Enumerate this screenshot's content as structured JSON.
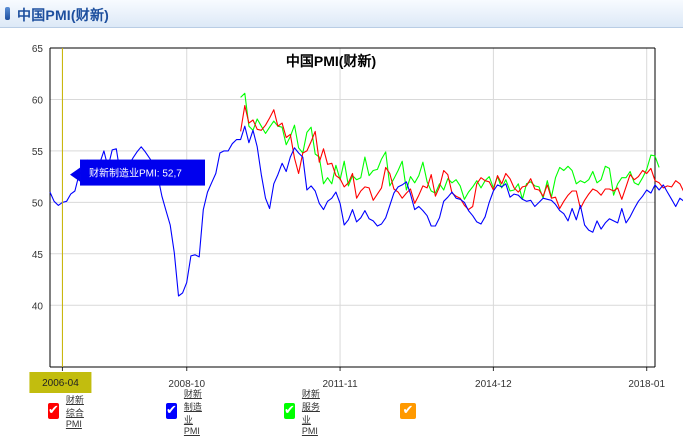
{
  "panel": {
    "title": "中国PMI(财新)"
  },
  "chart_data": {
    "type": "line",
    "title": "中国PMI(财新)",
    "ylim": [
      34,
      65
    ],
    "yticks": [
      40,
      45,
      50,
      55,
      60,
      65
    ],
    "xlim": [
      "2006-01",
      "2018-03"
    ],
    "xticks": [
      "2006-04",
      "2008-10",
      "2011-11",
      "2014-12",
      "2018-01"
    ],
    "x_tick_labels": [
      "2006-04",
      "2008-10",
      "2011-11",
      "2014-12",
      "2018-01"
    ],
    "x_start_label_partial": "200",
    "grid": true,
    "series": [
      {
        "name": "财新综合PMI",
        "color": "#ff0000",
        "start": "2009-11",
        "values": [
          56.9,
          59.4,
          57.7,
          58.0,
          57.1,
          57.0,
          57.5,
          58.2,
          59.0,
          57.4,
          57.7,
          56.3,
          56.6,
          54.3,
          52.8,
          54.8,
          55.0,
          55.9,
          56.9,
          53.9,
          55.2,
          53.7,
          53.8,
          52.6,
          52.3,
          51.5,
          51.9,
          52.8,
          50.4,
          51.1,
          51.5,
          51.4,
          50.2,
          50.8,
          51.4,
          53.4,
          52.8,
          51.3,
          51.0,
          50.4,
          50.9,
          51.3,
          49.9,
          50.7,
          51.6,
          51.4,
          52.7,
          50.6,
          51.5,
          53.1,
          52.7,
          50.9,
          50.6,
          50.4,
          49.7,
          49.3,
          49.6,
          51.8,
          52.4,
          52.1,
          52.0,
          51.2,
          52.6,
          51.8,
          52.8,
          52.3,
          51.4,
          51.0,
          51.5,
          51.6,
          52.3,
          51.3,
          51.2,
          50.6,
          51.7,
          50.4,
          50.5,
          49.4,
          50.1,
          50.7,
          51.1,
          51.1,
          49.4,
          50.2,
          50.8,
          51.3,
          51.1,
          50.7,
          51.3,
          51.3,
          51.1,
          51.4,
          50.3,
          51.5,
          52.7,
          52.2,
          52.5,
          53.1,
          52.8,
          53.3,
          52.1,
          51.9,
          51.4,
          51.6,
          51.5,
          52.1,
          51.8,
          51.0,
          51.2,
          51.6,
          51.3,
          51.5,
          51.9,
          51.7,
          52.3,
          53.0,
          53.6,
          53.3,
          52.2
        ],
        "style": "line"
      },
      {
        "name": "财新制造业PMI",
        "color": "#0000ff",
        "start": "2006-01",
        "values": [
          51.0,
          50.1,
          49.7,
          50.0,
          50.1,
          50.8,
          51.1,
          52.7,
          53.2,
          54.1,
          52.3,
          53.0,
          53.8,
          55.0,
          53.4,
          55.1,
          55.2,
          52.7,
          53.0,
          53.6,
          54.3,
          54.9,
          55.4,
          54.9,
          54.3,
          53.7,
          52.6,
          50.6,
          49.2,
          47.8,
          45.1,
          40.9,
          41.2,
          42.2,
          44.8,
          44.9,
          44.7,
          49.3,
          51.0,
          51.9,
          52.8,
          54.8,
          55.0,
          55.0,
          55.7,
          56.1,
          56.1,
          57.4,
          55.8,
          57.0,
          55.4,
          52.7,
          50.4,
          49.4,
          51.8,
          52.7,
          53.8,
          53.0,
          54.4,
          55.3,
          54.8,
          54.4,
          51.2,
          51.6,
          51.1,
          49.9,
          49.3,
          50.1,
          50.4,
          51.0,
          49.9,
          47.8,
          48.3,
          49.3,
          48.1,
          48.5,
          49.2,
          48.4,
          48.2,
          47.7,
          47.9,
          48.5,
          49.7,
          50.9,
          51.5,
          51.7,
          52.0,
          50.8,
          49.3,
          49.6,
          49.2,
          48.7,
          47.7,
          47.7,
          48.5,
          50.1,
          50.5,
          51.0,
          50.4,
          50.3,
          50.0,
          49.2,
          48.7,
          48.1,
          47.9,
          48.6,
          50.0,
          51.1,
          51.7,
          51.5,
          51.8,
          50.5,
          50.8,
          50.7,
          50.3,
          50.1,
          50.2,
          49.6,
          50.0,
          50.4,
          50.3,
          50.2,
          49.8,
          49.2,
          48.9,
          48.2,
          49.4,
          48.3,
          49.7,
          47.8,
          47.3,
          47.1,
          48.2,
          47.4,
          48.0,
          48.4,
          48.2,
          48.0,
          49.4,
          48.0,
          48.6,
          49.4,
          50.1,
          50.6,
          51.2,
          50.9,
          51.7,
          51.2,
          51.7,
          51.0,
          50.3,
          49.6,
          50.4,
          50.1,
          51.6,
          51.0,
          51.5,
          51.1,
          50.8,
          51.5,
          51.6,
          51.5,
          51.4
        ],
        "style": "line"
      },
      {
        "name": "财新服务业PMI",
        "color": "#00ff00",
        "start": "2009-11",
        "values": [
          60.2,
          60.6,
          57.4,
          57.0,
          58.1,
          57.4,
          56.7,
          57.3,
          57.9,
          57.4,
          57.3,
          55.6,
          56.4,
          57.5,
          55.3,
          54.8,
          56.8,
          57.3,
          54.7,
          54.4,
          51.8,
          52.4,
          51.8,
          53.6,
          52.2,
          54.0,
          51.6,
          52.6,
          52.2,
          52.4,
          54.4,
          52.6,
          53.1,
          53.2,
          54.2,
          54.9,
          51.6,
          52.3,
          53.1,
          54.0,
          51.2,
          52.5,
          51.9,
          52.6,
          53.9,
          52.0,
          51.1,
          50.9,
          51.8,
          51.2,
          52.3,
          51.9,
          52.2,
          51.6,
          50.3,
          51.0,
          51.5,
          52.1,
          51.4,
          52.1,
          52.5,
          51.4,
          52.5,
          51.4,
          52.2,
          51.1,
          51.2,
          51.8,
          50.3,
          51.8,
          52.0,
          51.6,
          51.5,
          50.4,
          52.1,
          50.5,
          52.4,
          53.4,
          53.1,
          53.5,
          53.1,
          51.8,
          52.1,
          51.9,
          52.2,
          53.0,
          51.9,
          52.2,
          53.5,
          53.3,
          50.7,
          51.8,
          52.4,
          52.4,
          53.0,
          51.9,
          51.7,
          52.4,
          53.2,
          54.6,
          54.5,
          53.4
        ]
      },
      {
        "name": "",
        "color": "#ff9900",
        "values": []
      }
    ],
    "tooltip": {
      "label": "财新制造业PMI",
      "value": "52,7",
      "text": "财新制造业PMI:  52,7",
      "at": "2006-08"
    },
    "crosshair": {
      "x": "2006-04",
      "label": "2006-04"
    }
  },
  "legend": [
    {
      "label": "财新综合PMI",
      "color": "#ff0000",
      "checked": true
    },
    {
      "label": "财新制造业PMI",
      "color": "#0000ff",
      "checked": true
    },
    {
      "label": "财新服务业PMI",
      "color": "#00ff00",
      "checked": true
    },
    {
      "label": "",
      "color": "#ff9900",
      "checked": true
    }
  ]
}
